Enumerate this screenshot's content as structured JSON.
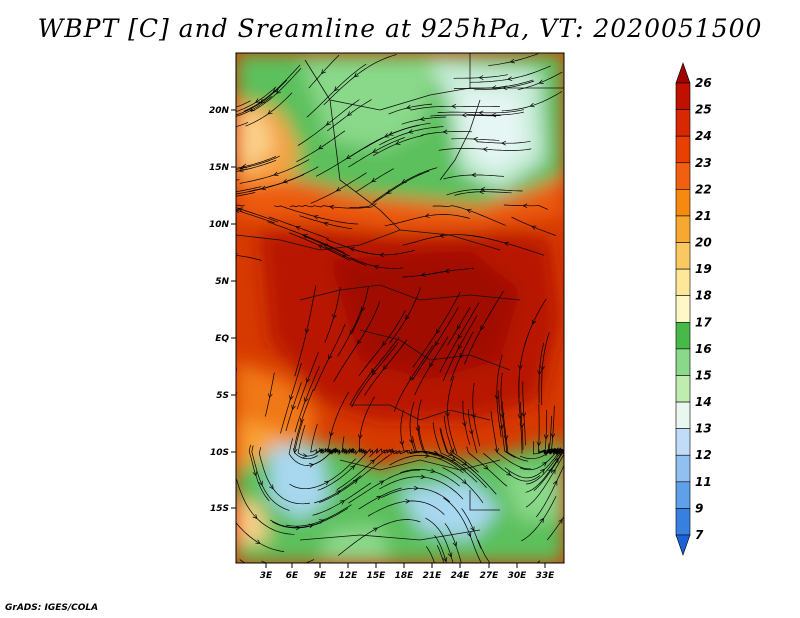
{
  "title": "WBPT [C] and Sreamline at 925hPa, VT: 2020051500",
  "footer": "GrADS: IGES/COLA",
  "lat_labels": [
    "20N",
    "15N",
    "10N",
    "5N",
    "EQ",
    "5S",
    "10S",
    "15S"
  ],
  "lon_labels": [
    "3E",
    "6E",
    "9E",
    "12E",
    "15E",
    "18E",
    "21E",
    "24E",
    "27E",
    "30E",
    "33E"
  ],
  "colorbar": {
    "labels": [
      "26",
      "25",
      "24",
      "23",
      "22",
      "21",
      "20",
      "19",
      "18",
      "17",
      "16",
      "15",
      "14",
      "13",
      "12",
      "11",
      "9",
      "7"
    ],
    "colors": [
      "#a00000",
      "#c01000",
      "#d82800",
      "#e84000",
      "#f06010",
      "#f68a10",
      "#f8a830",
      "#fac860",
      "#fce898",
      "#fef8c8",
      "#48b848",
      "#8ad88a",
      "#c0ecb0",
      "#e8f8f0",
      "#c0dcf8",
      "#90c0f0",
      "#60a0e8",
      "#3880e0",
      "#1e60d8"
    ]
  }
}
